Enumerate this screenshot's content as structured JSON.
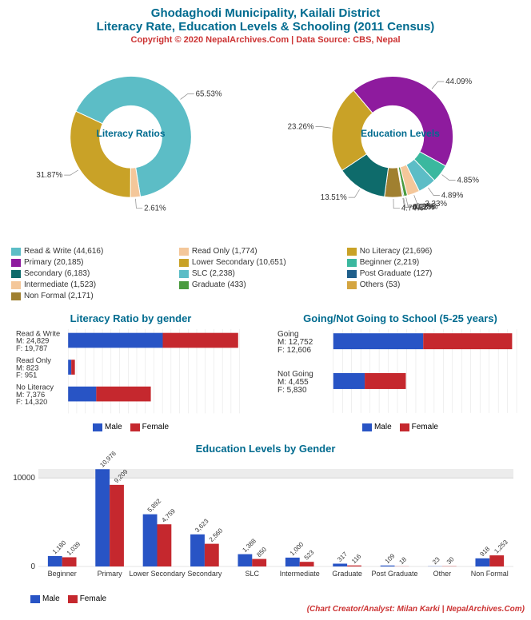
{
  "header": {
    "title": "Ghodaghodi Municipality, Kailali District",
    "subtitle": "Literacy Rate, Education Levels & Schooling (2011 Census)",
    "copyright": "Copyright © 2020 NepalArchives.Com | Data Source: CBS, Nepal"
  },
  "colors": {
    "male": "#2854c5",
    "female": "#c5282e",
    "grid": "#e0e0e0",
    "teal": "#006b8f"
  },
  "literacy_donut": {
    "title": "Literacy Ratios",
    "slices": [
      {
        "label": "Read & Write",
        "count": 44616,
        "pct": 65.53,
        "color": "#5cbdc6"
      },
      {
        "label": "Read Only",
        "count": 1774,
        "pct": 2.61,
        "color": "#f4c79a"
      },
      {
        "label": "No Literacy",
        "count": 21696,
        "pct": 31.87,
        "color": "#c9a227"
      }
    ],
    "legend_extra": []
  },
  "education_donut": {
    "title": "Education Levels",
    "slices": [
      {
        "label": "Primary",
        "count": 20185,
        "pct": 44.09,
        "color": "#8e1b9e"
      },
      {
        "label": "Beginner",
        "count": 2219,
        "pct": 4.85,
        "color": "#3bb89f"
      },
      {
        "label": "SLC",
        "count": 2238,
        "pct": 4.89,
        "color": "#5cbdc6"
      },
      {
        "label": "Intermediate",
        "count": 1523,
        "pct": 3.33,
        "color": "#f4c79a"
      },
      {
        "label": "Graduate",
        "count": 433,
        "pct": 0.95,
        "color": "#4a9b3f"
      },
      {
        "label": "Post Graduate",
        "count": 127,
        "pct": 0.28,
        "color": "#1f5f8b"
      },
      {
        "label": "Others",
        "count": 53,
        "pct": 0.12,
        "color": "#d4a540"
      },
      {
        "label": "Non Formal",
        "count": 2171,
        "pct": 4.74,
        "color": "#a08030"
      },
      {
        "label": "Secondary",
        "count": 6183,
        "pct": 13.51,
        "color": "#0e6b6b"
      },
      {
        "label": "Lower Secondary",
        "count": 10651,
        "pct": 23.26,
        "color": "#c9a227"
      }
    ]
  },
  "education_legend": [
    {
      "label": "Primary (20,185)",
      "color": "#8e1b9e"
    },
    {
      "label": "Lower Secondary (10,651)",
      "color": "#c9a227"
    },
    {
      "label": "Secondary (6,183)",
      "color": "#0e6b6b"
    },
    {
      "label": "Beginner (2,219)",
      "color": "#3bb89f"
    },
    {
      "label": "SLC (2,238)",
      "color": "#5cbdc6"
    },
    {
      "label": "Post Graduate (127)",
      "color": "#1f5f8b"
    },
    {
      "label": "Intermediate (1,523)",
      "color": "#f4c79a"
    },
    {
      "label": "Graduate (433)",
      "color": "#4a9b3f"
    },
    {
      "label": "Others (53)",
      "color": "#d4a540"
    },
    {
      "label": "Non Formal (2,171)",
      "color": "#a08030"
    }
  ],
  "literacy_legend": [
    {
      "label": "Read & Write (44,616)",
      "color": "#5cbdc6"
    },
    {
      "label": "Read Only (1,774)",
      "color": "#f4c79a"
    },
    {
      "label": "No Literacy (21,696)",
      "color": "#c9a227"
    }
  ],
  "literacy_by_gender": {
    "title": "Literacy Ratio by gender",
    "categories": [
      {
        "name": "Read & Write",
        "male": 24829,
        "female": 19787
      },
      {
        "name": "Read Only",
        "male": 823,
        "female": 951
      },
      {
        "name": "No Literacy",
        "male": 7376,
        "female": 14320
      }
    ],
    "max": 45000
  },
  "schooling": {
    "title": "Going/Not Going to School (5-25 years)",
    "categories": [
      {
        "name": "Going",
        "male": 12752,
        "female": 12606
      },
      {
        "name": "Not Going",
        "male": 4455,
        "female": 5830
      }
    ],
    "max": 26000
  },
  "education_by_gender": {
    "title": "Education Levels by Gender",
    "categories": [
      {
        "name": "Beginner",
        "male": 1180,
        "female": 1039
      },
      {
        "name": "Primary",
        "male": 10976,
        "female": 9209
      },
      {
        "name": "Lower Secondary",
        "male": 5892,
        "female": 4759
      },
      {
        "name": "Secondary",
        "male": 3623,
        "female": 2560
      },
      {
        "name": "SLC",
        "male": 1388,
        "female": 850
      },
      {
        "name": "Intermediate",
        "male": 1000,
        "female": 523
      },
      {
        "name": "Graduate",
        "male": 317,
        "female": 116
      },
      {
        "name": "Post Graduate",
        "male": 109,
        "female": 18
      },
      {
        "name": "Other",
        "male": 23,
        "female": 30
      },
      {
        "name": "Non Formal",
        "male": 918,
        "female": 1253
      }
    ],
    "max": 11000,
    "ytick": 10000
  },
  "mf_legend": {
    "male": "Male",
    "female": "Female"
  },
  "credit": "(Chart Creator/Analyst: Milan Karki | NepalArchives.Com)"
}
